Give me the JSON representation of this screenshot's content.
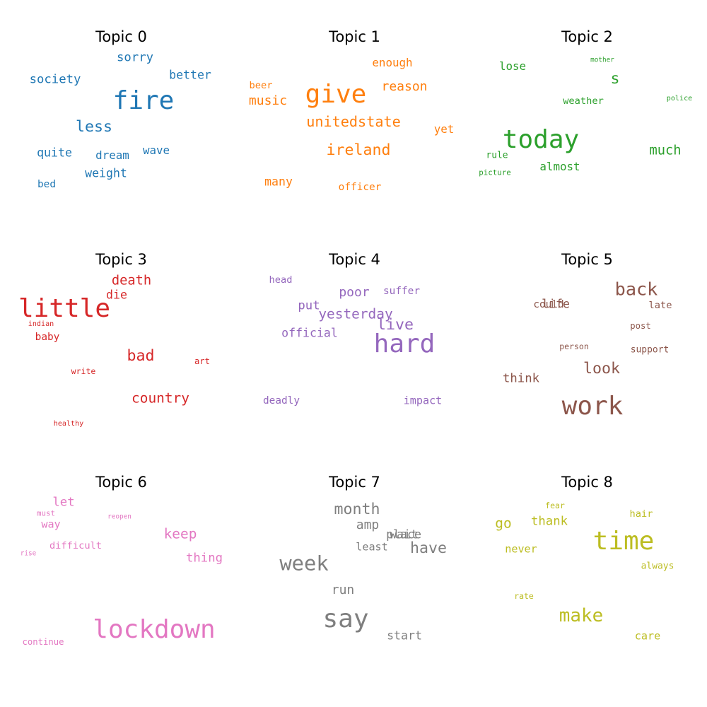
{
  "chart_data": {
    "type": "wordcloud",
    "panels": [
      {
        "title": "Topic 0",
        "color": "#1f77b4",
        "words": [
          {
            "text": "fire",
            "size": 5
          },
          {
            "text": "less",
            "size": 3
          },
          {
            "text": "society",
            "size": 2.4
          },
          {
            "text": "sorry",
            "size": 2.4
          },
          {
            "text": "weight",
            "size": 2.3
          },
          {
            "text": "better",
            "size": 2.3
          },
          {
            "text": "quite",
            "size": 2.3
          },
          {
            "text": "dream",
            "size": 2.2
          },
          {
            "text": "wave",
            "size": 2.2
          },
          {
            "text": "bed",
            "size": 2
          }
        ]
      },
      {
        "title": "Topic 1",
        "color": "#ff7f0e",
        "words": [
          {
            "text": "give",
            "size": 5
          },
          {
            "text": "ireland",
            "size": 3
          },
          {
            "text": "unitedstate",
            "size": 2.8
          },
          {
            "text": "music",
            "size": 2.5
          },
          {
            "text": "reason",
            "size": 2.5
          },
          {
            "text": "many",
            "size": 2.3
          },
          {
            "text": "enough",
            "size": 2.2
          },
          {
            "text": "yet",
            "size": 2.2
          },
          {
            "text": "officer",
            "size": 2
          },
          {
            "text": "beer",
            "size": 1.9
          }
        ]
      },
      {
        "title": "Topic 2",
        "color": "#2ca02c",
        "words": [
          {
            "text": "today",
            "size": 5
          },
          {
            "text": "s",
            "size": 3
          },
          {
            "text": "much",
            "size": 2.6
          },
          {
            "text": "lose",
            "size": 2.2
          },
          {
            "text": "almost",
            "size": 2.2
          },
          {
            "text": "weather",
            "size": 1.9
          },
          {
            "text": "rule",
            "size": 1.8
          },
          {
            "text": "picture",
            "size": 1.5
          },
          {
            "text": "police",
            "size": 1.4
          },
          {
            "text": "mother",
            "size": 1.3
          }
        ]
      },
      {
        "title": "Topic 3",
        "color": "#d62728",
        "words": [
          {
            "text": "little",
            "size": 5
          },
          {
            "text": "bad",
            "size": 3
          },
          {
            "text": "country",
            "size": 2.7
          },
          {
            "text": "death",
            "size": 2.6
          },
          {
            "text": "die",
            "size": 2.3
          },
          {
            "text": "baby",
            "size": 2
          },
          {
            "text": "art",
            "size": 1.7
          },
          {
            "text": "write",
            "size": 1.6
          },
          {
            "text": "indian",
            "size": 1.4
          },
          {
            "text": "healthy",
            "size": 1.4
          }
        ]
      },
      {
        "title": "Topic 4",
        "color": "#9467bd",
        "words": [
          {
            "text": "hard",
            "size": 5
          },
          {
            "text": "live",
            "size": 3
          },
          {
            "text": "yesterday",
            "size": 2.7
          },
          {
            "text": "poor",
            "size": 2.5
          },
          {
            "text": "put",
            "size": 2.4
          },
          {
            "text": "official",
            "size": 2.3
          },
          {
            "text": "impact",
            "size": 2.1
          },
          {
            "text": "deadly",
            "size": 2
          },
          {
            "text": "suffer",
            "size": 2
          },
          {
            "text": "head",
            "size": 1.9
          }
        ]
      },
      {
        "title": "Topic 5",
        "color": "#8c564b",
        "words": [
          {
            "text": "work",
            "size": 5
          },
          {
            "text": "back",
            "size": 3.5
          },
          {
            "text": "look",
            "size": 3
          },
          {
            "text": "think",
            "size": 2.4
          },
          {
            "text": "life",
            "size": 2.3
          },
          {
            "text": "could",
            "size": 2
          },
          {
            "text": "late",
            "size": 1.9
          },
          {
            "text": "support",
            "size": 1.8
          },
          {
            "text": "post",
            "size": 1.7
          },
          {
            "text": "person",
            "size": 1.6
          }
        ]
      },
      {
        "title": "Topic 6",
        "color": "#e377c2",
        "words": [
          {
            "text": "lockdown",
            "size": 5
          },
          {
            "text": "keep",
            "size": 2.7
          },
          {
            "text": "thing",
            "size": 2.4
          },
          {
            "text": "let",
            "size": 2.4
          },
          {
            "text": "way",
            "size": 2.1
          },
          {
            "text": "difficult",
            "size": 1.9
          },
          {
            "text": "continue",
            "size": 1.7
          },
          {
            "text": "must",
            "size": 1.5
          },
          {
            "text": "reopen",
            "size": 1.3
          },
          {
            "text": "rise",
            "size": 1.3
          }
        ]
      },
      {
        "title": "Topic 7",
        "color": "#7f7f7f",
        "words": [
          {
            "text": "say",
            "size": 5
          },
          {
            "text": "week",
            "size": 4
          },
          {
            "text": "month",
            "size": 3
          },
          {
            "text": "have",
            "size": 3
          },
          {
            "text": "run",
            "size": 2.5
          },
          {
            "text": "amp",
            "size": 2.5
          },
          {
            "text": "start",
            "size": 2.3
          },
          {
            "text": "place",
            "size": 2.3
          },
          {
            "text": "wait",
            "size": 2.3
          },
          {
            "text": "least",
            "size": 2.1
          }
        ]
      },
      {
        "title": "Topic 8",
        "color": "#bcbd22",
        "words": [
          {
            "text": "time",
            "size": 5
          },
          {
            "text": "make",
            "size": 3.6
          },
          {
            "text": "go",
            "size": 2.7
          },
          {
            "text": "thank",
            "size": 2.4
          },
          {
            "text": "never",
            "size": 2.1
          },
          {
            "text": "care",
            "size": 2.1
          },
          {
            "text": "hair",
            "size": 1.9
          },
          {
            "text": "always",
            "size": 1.8
          },
          {
            "text": "fear",
            "size": 1.6
          },
          {
            "text": "rate",
            "size": 1.6
          }
        ]
      }
    ]
  }
}
